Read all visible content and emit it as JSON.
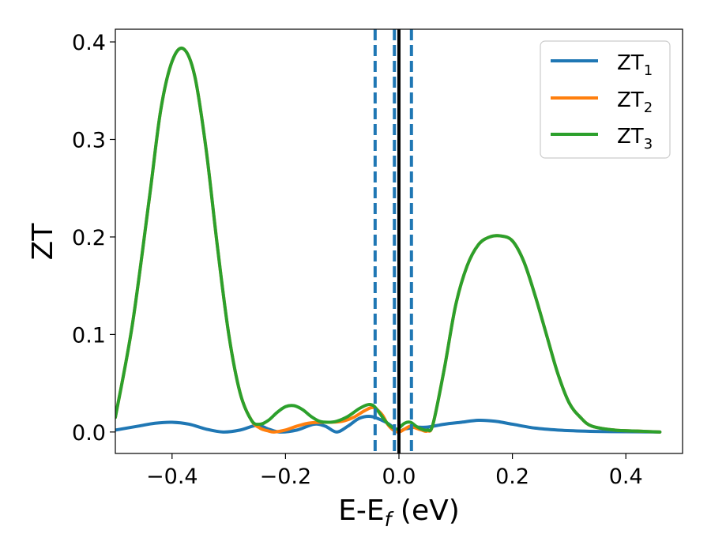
{
  "chart_data": {
    "type": "line",
    "xlabel_main": "E-E",
    "xlabel_sub": "f",
    "xlabel_unit": " (eV)",
    "ylabel": "ZT",
    "xlim": [
      -0.5,
      0.5
    ],
    "ylim": [
      -0.022,
      0.413
    ],
    "x_ticks": [
      -0.4,
      -0.2,
      0.0,
      0.2,
      0.4
    ],
    "x_tick_labels": [
      "−0.4",
      "−0.2",
      "0.0",
      "0.2",
      "0.4"
    ],
    "y_ticks": [
      0.0,
      0.1,
      0.2,
      0.3,
      0.4
    ],
    "y_tick_labels": [
      "0.0",
      "0.1",
      "0.2",
      "0.3",
      "0.4"
    ],
    "grid": false,
    "legend_position": "top-right",
    "vertical_lines": [
      {
        "x": -0.042,
        "style": "dashed",
        "color": "#1f77b4"
      },
      {
        "x": -0.008,
        "style": "dashed",
        "color": "#1f77b4"
      },
      {
        "x": 0.0,
        "style": "solid",
        "color": "#000000"
      },
      {
        "x": 0.022,
        "style": "dashed",
        "color": "#1f77b4"
      }
    ],
    "series": [
      {
        "name": "ZT",
        "name_sub": "1",
        "color": "#1f77b4",
        "x": [
          -0.5,
          -0.46,
          -0.43,
          -0.4,
          -0.37,
          -0.34,
          -0.31,
          -0.28,
          -0.25,
          -0.23,
          -0.21,
          -0.18,
          -0.15,
          -0.13,
          -0.11,
          -0.09,
          -0.07,
          -0.05,
          -0.03,
          -0.015,
          -0.005,
          0.0,
          0.01,
          0.02,
          0.03,
          0.05,
          0.08,
          0.11,
          0.14,
          0.17,
          0.2,
          0.24,
          0.28,
          0.32,
          0.36,
          0.4,
          0.46
        ],
        "values": [
          0.002,
          0.006,
          0.009,
          0.01,
          0.008,
          0.003,
          0.0,
          0.002,
          0.007,
          0.003,
          0.0,
          0.002,
          0.008,
          0.006,
          0.0,
          0.006,
          0.014,
          0.016,
          0.012,
          0.007,
          0.001,
          0.0,
          0.003,
          0.004,
          0.005,
          0.005,
          0.008,
          0.01,
          0.012,
          0.011,
          0.008,
          0.004,
          0.002,
          0.001,
          0.0005,
          0.0003,
          0.0
        ]
      },
      {
        "name": "ZT",
        "name_sub": "2",
        "color": "#ff7f0e",
        "x": [
          -0.5,
          -0.47,
          -0.44,
          -0.42,
          -0.4,
          -0.38,
          -0.36,
          -0.34,
          -0.32,
          -0.3,
          -0.28,
          -0.26,
          -0.245,
          -0.23,
          -0.22,
          -0.2,
          -0.18,
          -0.16,
          -0.14,
          -0.12,
          -0.1,
          -0.08,
          -0.06,
          -0.045,
          -0.03,
          -0.02,
          -0.01,
          0.0,
          0.01,
          0.02,
          0.03,
          0.04,
          0.05,
          0.06,
          0.08,
          0.1,
          0.12,
          0.14,
          0.16,
          0.18,
          0.2,
          0.22,
          0.24,
          0.26,
          0.28,
          0.3,
          0.32,
          0.34,
          0.38,
          0.42,
          0.46
        ],
        "values": [
          0.015,
          0.11,
          0.24,
          0.33,
          0.38,
          0.393,
          0.365,
          0.29,
          0.19,
          0.1,
          0.04,
          0.012,
          0.004,
          0.001,
          0.0,
          0.002,
          0.006,
          0.009,
          0.01,
          0.01,
          0.011,
          0.015,
          0.022,
          0.025,
          0.018,
          0.008,
          0.002,
          0.0,
          0.003,
          0.006,
          0.004,
          0.002,
          0.001,
          0.008,
          0.065,
          0.13,
          0.17,
          0.192,
          0.2,
          0.201,
          0.196,
          0.175,
          0.14,
          0.1,
          0.06,
          0.03,
          0.015,
          0.006,
          0.002,
          0.001,
          0.0
        ]
      },
      {
        "name": "ZT",
        "name_sub": "3",
        "color": "#2ca02c",
        "x": [
          -0.5,
          -0.47,
          -0.44,
          -0.42,
          -0.4,
          -0.38,
          -0.36,
          -0.34,
          -0.32,
          -0.3,
          -0.28,
          -0.26,
          -0.245,
          -0.23,
          -0.215,
          -0.2,
          -0.185,
          -0.17,
          -0.155,
          -0.14,
          -0.125,
          -0.11,
          -0.09,
          -0.07,
          -0.055,
          -0.045,
          -0.035,
          -0.025,
          -0.015,
          -0.005,
          0.0,
          0.01,
          0.02,
          0.03,
          0.04,
          0.05,
          0.06,
          0.08,
          0.1,
          0.12,
          0.14,
          0.16,
          0.18,
          0.2,
          0.22,
          0.24,
          0.26,
          0.28,
          0.3,
          0.32,
          0.34,
          0.38,
          0.42,
          0.46
        ],
        "values": [
          0.015,
          0.11,
          0.24,
          0.33,
          0.38,
          0.393,
          0.365,
          0.29,
          0.19,
          0.1,
          0.04,
          0.012,
          0.008,
          0.012,
          0.02,
          0.026,
          0.027,
          0.023,
          0.016,
          0.011,
          0.01,
          0.011,
          0.016,
          0.024,
          0.028,
          0.027,
          0.02,
          0.012,
          0.006,
          0.003,
          0.004,
          0.009,
          0.01,
          0.006,
          0.003,
          0.002,
          0.008,
          0.065,
          0.13,
          0.17,
          0.192,
          0.2,
          0.201,
          0.196,
          0.175,
          0.14,
          0.1,
          0.06,
          0.03,
          0.015,
          0.006,
          0.002,
          0.001,
          0.0
        ]
      }
    ]
  }
}
